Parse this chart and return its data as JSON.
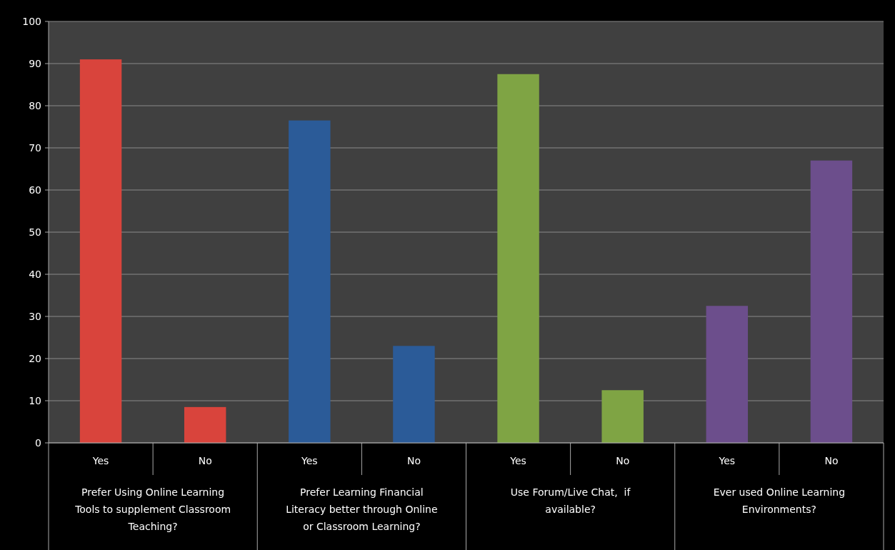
{
  "chart_data": {
    "type": "bar",
    "categories": [
      "Yes",
      "No",
      "Yes",
      "No",
      "Yes",
      "No",
      "Yes",
      "No"
    ],
    "values": [
      91,
      8.5,
      76.5,
      23,
      87.5,
      12.5,
      32.5,
      67
    ],
    "colors": [
      "#d9443c",
      "#d9443c",
      "#2b5b98",
      "#2b5b98",
      "#7fa444",
      "#7fa444",
      "#6c4e8c",
      "#6c4e8c"
    ],
    "annotations": [
      "Prefer Using Online Learning Tools to supplement Classroom Teaching?",
      "Prefer Learning Financial Literacy better through Online or Classroom Learning?",
      "Use Forum/Live Chat,  if available?",
      "Ever used Online Learning Environments?"
    ],
    "ylim": [
      0,
      100
    ],
    "yticks": [
      0,
      10,
      20,
      30,
      40,
      50,
      60,
      70,
      80,
      90,
      100
    ],
    "grid": "y"
  }
}
